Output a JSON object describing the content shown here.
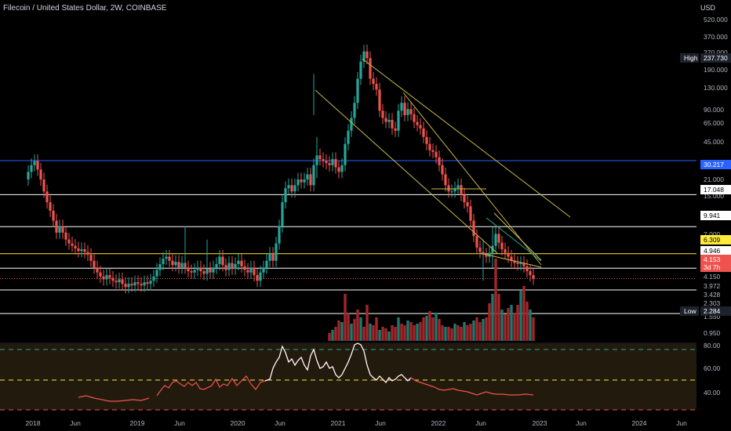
{
  "header": {
    "title": "Filecoin / United States Dollar, 2W, COINBASE",
    "currency": "USD"
  },
  "chart_data": {
    "type": "candlestick",
    "scale": "log",
    "y_tick_labels": [
      "520.000",
      "370.000",
      "270.000",
      "190.000",
      "130.000",
      "90.000",
      "65.000",
      "45.000",
      "21.000",
      "15.000",
      "7.000",
      "4.150",
      "3.972",
      "3.428",
      "2.303",
      "1.550",
      "0.950"
    ],
    "x_tick_labels": [
      "2018",
      "Jun",
      "2019",
      "Jun",
      "2020",
      "Jun",
      "2021",
      "Jun",
      "2022",
      "Jun",
      "2023",
      "Jun",
      "2024",
      "Jun"
    ],
    "price_labels": [
      {
        "label": "High",
        "value": "237.730",
        "color": "#1e222d"
      },
      {
        "label": "",
        "value": "30.217",
        "color": "#2962ff"
      },
      {
        "label": "",
        "value": "17.048",
        "color": "#ffffff"
      },
      {
        "label": "",
        "value": "9.941",
        "color": "#ffffff"
      },
      {
        "label": "",
        "value": "6.309",
        "color": "#ffeb3b"
      },
      {
        "label": "",
        "value": "4.946",
        "color": "#ffffff"
      },
      {
        "label": "",
        "value": "4.153",
        "color": "#ef5350"
      },
      {
        "label": "",
        "value": "3d 7h",
        "color": "#ef5350"
      },
      {
        "label": "Low",
        "value": "2.284",
        "color": "#1e222d"
      }
    ],
    "horizontal_levels": [
      {
        "value": 30.217,
        "color": "#2962ff"
      },
      {
        "value": 17.048,
        "color": "#ffffff"
      },
      {
        "value": 9.941,
        "color": "#ffffff"
      },
      {
        "value": 6.309,
        "color": "#ffeb3b"
      },
      {
        "value": 4.946,
        "color": "#ffffff"
      },
      {
        "value": 4.153,
        "color": "#ef5350"
      },
      {
        "value": 3.428,
        "color": "#ffffff"
      },
      {
        "value": 2.303,
        "color": "#ffffff"
      }
    ],
    "rsi": {
      "y_tick_labels": [
        "80.00",
        "60.00",
        "40.00"
      ],
      "levels": [
        75,
        50,
        25
      ]
    },
    "colors": {
      "up": "#26a69a",
      "down": "#ef5350",
      "volume_up": "#1b7a70",
      "volume_down": "#a3262a",
      "trend": "#c8b84a",
      "rsi_high": "#ffffff",
      "rsi_low": "#ef5350"
    }
  }
}
